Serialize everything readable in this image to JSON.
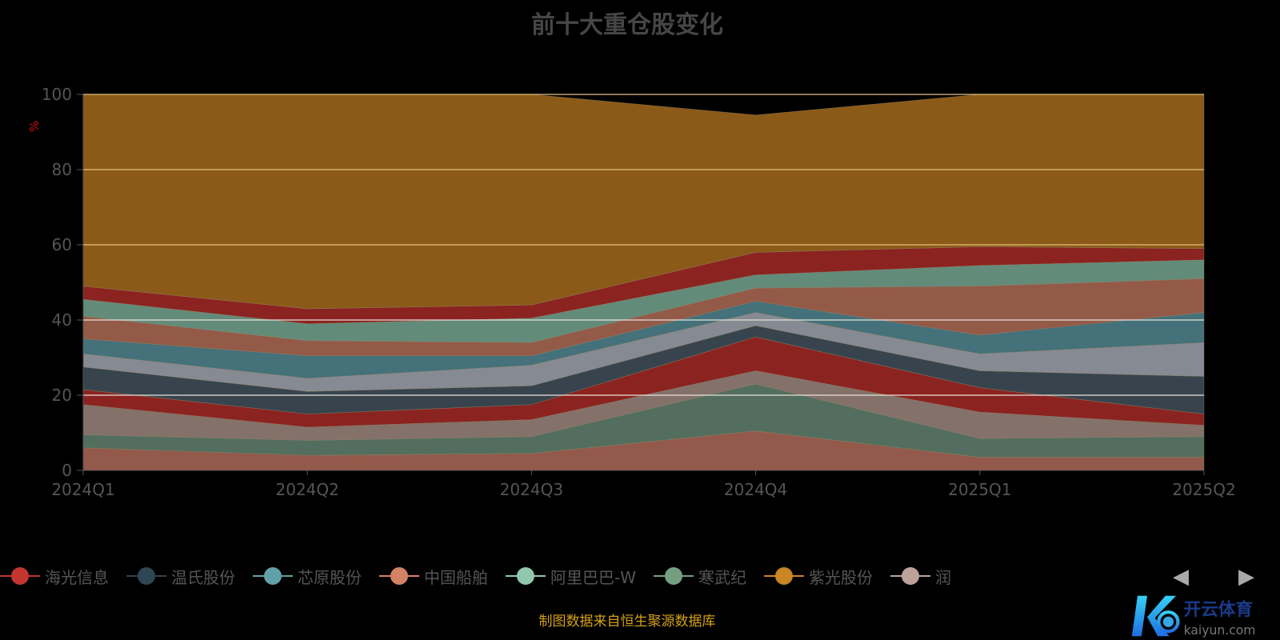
{
  "title": "前十大重仓股变化",
  "footer": "制图数据来自恒生聚源数据库",
  "watermark": {
    "cn": "开云体育",
    "en": "kaiyun.com"
  },
  "pager": {
    "prev": "◀",
    "next": "▶"
  },
  "legend": [
    {
      "name": "海光信息",
      "color": "#c23531"
    },
    {
      "name": "温氏股份",
      "color": "#2f4554"
    },
    {
      "name": "芯原股份",
      "color": "#61a0a8"
    },
    {
      "name": "中国船舶",
      "color": "#d48265"
    },
    {
      "name": "阿里巴巴-W",
      "color": "#91c7ae"
    },
    {
      "name": "寒武纪",
      "color": "#749f83"
    },
    {
      "name": "紫光股份",
      "color": "#ca8622"
    },
    {
      "name": "润",
      "color": "#bda29a"
    }
  ],
  "chart_data": {
    "type": "area",
    "stacked": true,
    "title": "前十大重仓股变化",
    "ylabel": "%",
    "ylim": [
      0,
      100
    ],
    "yticks": [
      "0",
      "20",
      "40",
      "60",
      "80",
      "100"
    ],
    "categories": [
      "2024Q1",
      "2024Q2",
      "2024Q3",
      "2024Q4",
      "2025Q1",
      "2025Q2"
    ],
    "grid": true,
    "series": [
      {
        "color": "#93594a",
        "values": [
          6,
          4,
          4.5,
          10.5,
          3.5,
          3.5
        ]
      },
      {
        "color": "#536e5e",
        "values": [
          3.5,
          4,
          4.5,
          12.5,
          5,
          5.5
        ]
      },
      {
        "color": "#83716a",
        "values": [
          8,
          3.5,
          4.5,
          3.5,
          7,
          3
        ]
      },
      {
        "color": "#8b2320",
        "values": [
          4,
          3.5,
          4,
          9,
          6.5,
          3
        ]
      },
      {
        "color": "#37444d",
        "values": [
          6,
          6,
          5,
          3,
          4.5,
          10
        ]
      },
      {
        "color": "#868a93",
        "values": [
          3.5,
          3.5,
          5.5,
          3.5,
          4.5,
          9
        ]
      },
      {
        "color": "#44717a",
        "values": [
          4,
          6,
          2.5,
          3,
          5,
          8
        ]
      },
      {
        "color": "#935a48",
        "values": [
          6,
          4,
          3.5,
          3.5,
          13,
          9
        ]
      },
      {
        "color": "#638b7a",
        "values": [
          4.5,
          4.5,
          6.5,
          3.5,
          5.5,
          5
        ]
      },
      {
        "color": "#8b2320",
        "values": [
          3.5,
          4,
          3.5,
          6,
          5,
          3
        ]
      },
      {
        "color": "#8b5a18",
        "values": [
          51,
          57,
          56,
          36.5,
          40.5,
          41
        ]
      }
    ]
  }
}
